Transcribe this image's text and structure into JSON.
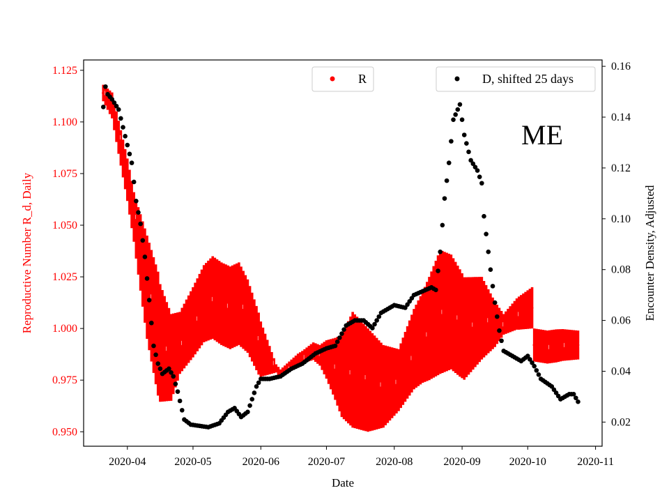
{
  "chart_data": {
    "type": "scatter",
    "panel_label": "ME",
    "xlabel": "Date",
    "ylabel_left": "Reproductive Number R_d, Daily",
    "ylabel_right": "Encounter Density, Adjusted",
    "x_range": [
      "2020-03-12",
      "2020-11-04"
    ],
    "ylim_left": [
      0.943,
      1.13
    ],
    "ylim_right": [
      0.0105,
      0.1625
    ],
    "x_ticks": [
      "2020-04",
      "2020-05",
      "2020-06",
      "2020-07",
      "2020-08",
      "2020-09",
      "2020-10",
      "2020-11"
    ],
    "y_ticks_left": [
      "0.950",
      "0.975",
      "1.000",
      "1.025",
      "1.050",
      "1.075",
      "1.100",
      "1.125"
    ],
    "y_ticks_right": [
      "0.02",
      "0.04",
      "0.06",
      "0.08",
      "0.10",
      "0.12",
      "0.14",
      "0.16"
    ],
    "grid": false,
    "colors": {
      "r_series": "#ff0000",
      "d_series": "#000000",
      "left_axis_text": "#ff0000"
    },
    "legend": [
      {
        "label": "R",
        "color": "#ff0000",
        "placement": "top-center"
      },
      {
        "label": "D, shifted 25 days",
        "color": "#000000",
        "placement": "top-right"
      }
    ],
    "series": [
      {
        "name": "R",
        "axis": "left",
        "style": "points with vertical error bars",
        "x_start": "2020-03-21",
        "x_end": "2020-10-24",
        "break_after": "2020-10-03",
        "resume_at": "2020-10-04",
        "value_knots": [
          [
            "2020-03-21",
            1.114
          ],
          [
            "2020-03-25",
            1.108
          ],
          [
            "2020-04-01",
            1.072
          ],
          [
            "2020-04-05",
            1.048
          ],
          [
            "2020-04-10",
            1.02
          ],
          [
            "2020-04-16",
            0.993
          ],
          [
            "2020-04-21",
            0.986
          ],
          [
            "2020-04-25",
            0.993
          ],
          [
            "2020-05-01",
            1.003
          ],
          [
            "2020-05-06",
            1.012
          ],
          [
            "2020-05-10",
            1.015
          ],
          [
            "2020-05-14",
            1.012
          ],
          [
            "2020-05-18",
            1.01
          ],
          [
            "2020-05-22",
            1.012
          ],
          [
            "2020-05-26",
            1.006
          ],
          [
            "2020-06-01",
            0.99
          ],
          [
            "2020-06-10",
            0.978
          ],
          [
            "2020-06-18",
            0.985
          ],
          [
            "2020-06-25",
            0.989
          ],
          [
            "2020-07-01",
            0.985
          ],
          [
            "2020-07-08",
            0.977
          ],
          [
            "2020-07-13",
            0.98
          ],
          [
            "2020-07-20",
            0.975
          ],
          [
            "2020-07-27",
            0.972
          ],
          [
            "2020-08-03",
            0.975
          ],
          [
            "2020-08-10",
            0.99
          ],
          [
            "2020-08-17",
            1.0
          ],
          [
            "2020-08-22",
            1.008
          ],
          [
            "2020-08-27",
            1.008
          ],
          [
            "2020-09-02",
            1.0
          ],
          [
            "2020-09-10",
            1.005
          ],
          [
            "2020-09-16",
            1.002
          ],
          [
            "2020-09-20",
            1.002
          ],
          [
            "2020-09-26",
            1.007
          ],
          [
            "2020-10-03",
            1.01
          ],
          [
            "2020-10-04",
            0.992
          ],
          [
            "2020-10-10",
            0.991
          ],
          [
            "2020-10-17",
            0.992
          ],
          [
            "2020-10-24",
            0.992
          ]
        ],
        "error_knots": [
          [
            "2020-03-21",
            0.004
          ],
          [
            "2020-03-28",
            0.008
          ],
          [
            "2020-04-04",
            0.012
          ],
          [
            "2020-04-10",
            0.025
          ],
          [
            "2020-04-15",
            0.03
          ],
          [
            "2020-04-25",
            0.015
          ],
          [
            "2020-05-10",
            0.02
          ],
          [
            "2020-05-22",
            0.02
          ],
          [
            "2020-05-31",
            0.015
          ],
          [
            "2020-06-08",
            0.002
          ],
          [
            "2020-06-20",
            0.003
          ],
          [
            "2020-06-28",
            0.005
          ],
          [
            "2020-07-05",
            0.015
          ],
          [
            "2020-07-13",
            0.028
          ],
          [
            "2020-07-20",
            0.025
          ],
          [
            "2020-07-27",
            0.02
          ],
          [
            "2020-08-03",
            0.015
          ],
          [
            "2020-08-14",
            0.022
          ],
          [
            "2020-08-22",
            0.03
          ],
          [
            "2020-08-31",
            0.026
          ],
          [
            "2020-09-10",
            0.02
          ],
          [
            "2020-09-20",
            0.005
          ],
          [
            "2020-09-27",
            0.008
          ],
          [
            "2020-10-03",
            0.01
          ],
          [
            "2020-10-04",
            0.008
          ],
          [
            "2020-10-14",
            0.008
          ],
          [
            "2020-10-24",
            0.007
          ]
        ]
      },
      {
        "name": "D, shifted 25 days",
        "axis": "right",
        "style": "points",
        "x_start": "2020-03-21",
        "x_end": "2020-10-24",
        "value_knots": [
          [
            "2020-03-21",
            0.144
          ],
          [
            "2020-03-22",
            0.152
          ],
          [
            "2020-03-23",
            0.149
          ],
          [
            "2020-03-25",
            0.147
          ],
          [
            "2020-03-28",
            0.143
          ],
          [
            "2020-03-30",
            0.136
          ],
          [
            "2020-04-01",
            0.129
          ],
          [
            "2020-04-03",
            0.122
          ],
          [
            "2020-04-05",
            0.107
          ],
          [
            "2020-04-07",
            0.098
          ],
          [
            "2020-04-09",
            0.085
          ],
          [
            "2020-04-11",
            0.068
          ],
          [
            "2020-04-13",
            0.05
          ],
          [
            "2020-04-15",
            0.043
          ],
          [
            "2020-04-17",
            0.039
          ],
          [
            "2020-04-20",
            0.041
          ],
          [
            "2020-04-22",
            0.038
          ],
          [
            "2020-04-24",
            0.032
          ],
          [
            "2020-04-27",
            0.021
          ],
          [
            "2020-04-30",
            0.019
          ],
          [
            "2020-05-04",
            0.0185
          ],
          [
            "2020-05-08",
            0.018
          ],
          [
            "2020-05-13",
            0.0195
          ],
          [
            "2020-05-17",
            0.024
          ],
          [
            "2020-05-20",
            0.0255
          ],
          [
            "2020-05-23",
            0.022
          ],
          [
            "2020-05-26",
            0.024
          ],
          [
            "2020-05-30",
            0.034
          ],
          [
            "2020-06-01",
            0.037
          ],
          [
            "2020-06-05",
            0.037
          ],
          [
            "2020-06-10",
            0.038
          ],
          [
            "2020-06-15",
            0.041
          ],
          [
            "2020-06-20",
            0.043
          ],
          [
            "2020-06-26",
            0.047
          ],
          [
            "2020-07-01",
            0.049
          ],
          [
            "2020-07-05",
            0.05
          ],
          [
            "2020-07-10",
            0.058
          ],
          [
            "2020-07-14",
            0.06
          ],
          [
            "2020-07-18",
            0.06
          ],
          [
            "2020-07-22",
            0.057
          ],
          [
            "2020-07-26",
            0.063
          ],
          [
            "2020-08-01",
            0.066
          ],
          [
            "2020-08-06",
            0.065
          ],
          [
            "2020-08-10",
            0.07
          ],
          [
            "2020-08-14",
            0.0715
          ],
          [
            "2020-08-18",
            0.073
          ],
          [
            "2020-08-20",
            0.072
          ],
          [
            "2020-08-22",
            0.087
          ],
          [
            "2020-08-24",
            0.108
          ],
          [
            "2020-08-26",
            0.122
          ],
          [
            "2020-08-28",
            0.139
          ],
          [
            "2020-08-31",
            0.145
          ],
          [
            "2020-09-02",
            0.133
          ],
          [
            "2020-09-05",
            0.123
          ],
          [
            "2020-09-08",
            0.119
          ],
          [
            "2020-09-10",
            0.114
          ],
          [
            "2020-09-11",
            0.101
          ],
          [
            "2020-09-12",
            0.094
          ],
          [
            "2020-09-14",
            0.08
          ],
          [
            "2020-09-16",
            0.067
          ],
          [
            "2020-09-18",
            0.056
          ],
          [
            "2020-09-20",
            0.048
          ],
          [
            "2020-09-24",
            0.046
          ],
          [
            "2020-09-28",
            0.044
          ],
          [
            "2020-10-01",
            0.046
          ],
          [
            "2020-10-04",
            0.042
          ],
          [
            "2020-10-07",
            0.037
          ],
          [
            "2020-10-12",
            0.034
          ],
          [
            "2020-10-16",
            0.029
          ],
          [
            "2020-10-20",
            0.031
          ],
          [
            "2020-10-22",
            0.031
          ],
          [
            "2020-10-24",
            0.028
          ]
        ]
      }
    ]
  }
}
